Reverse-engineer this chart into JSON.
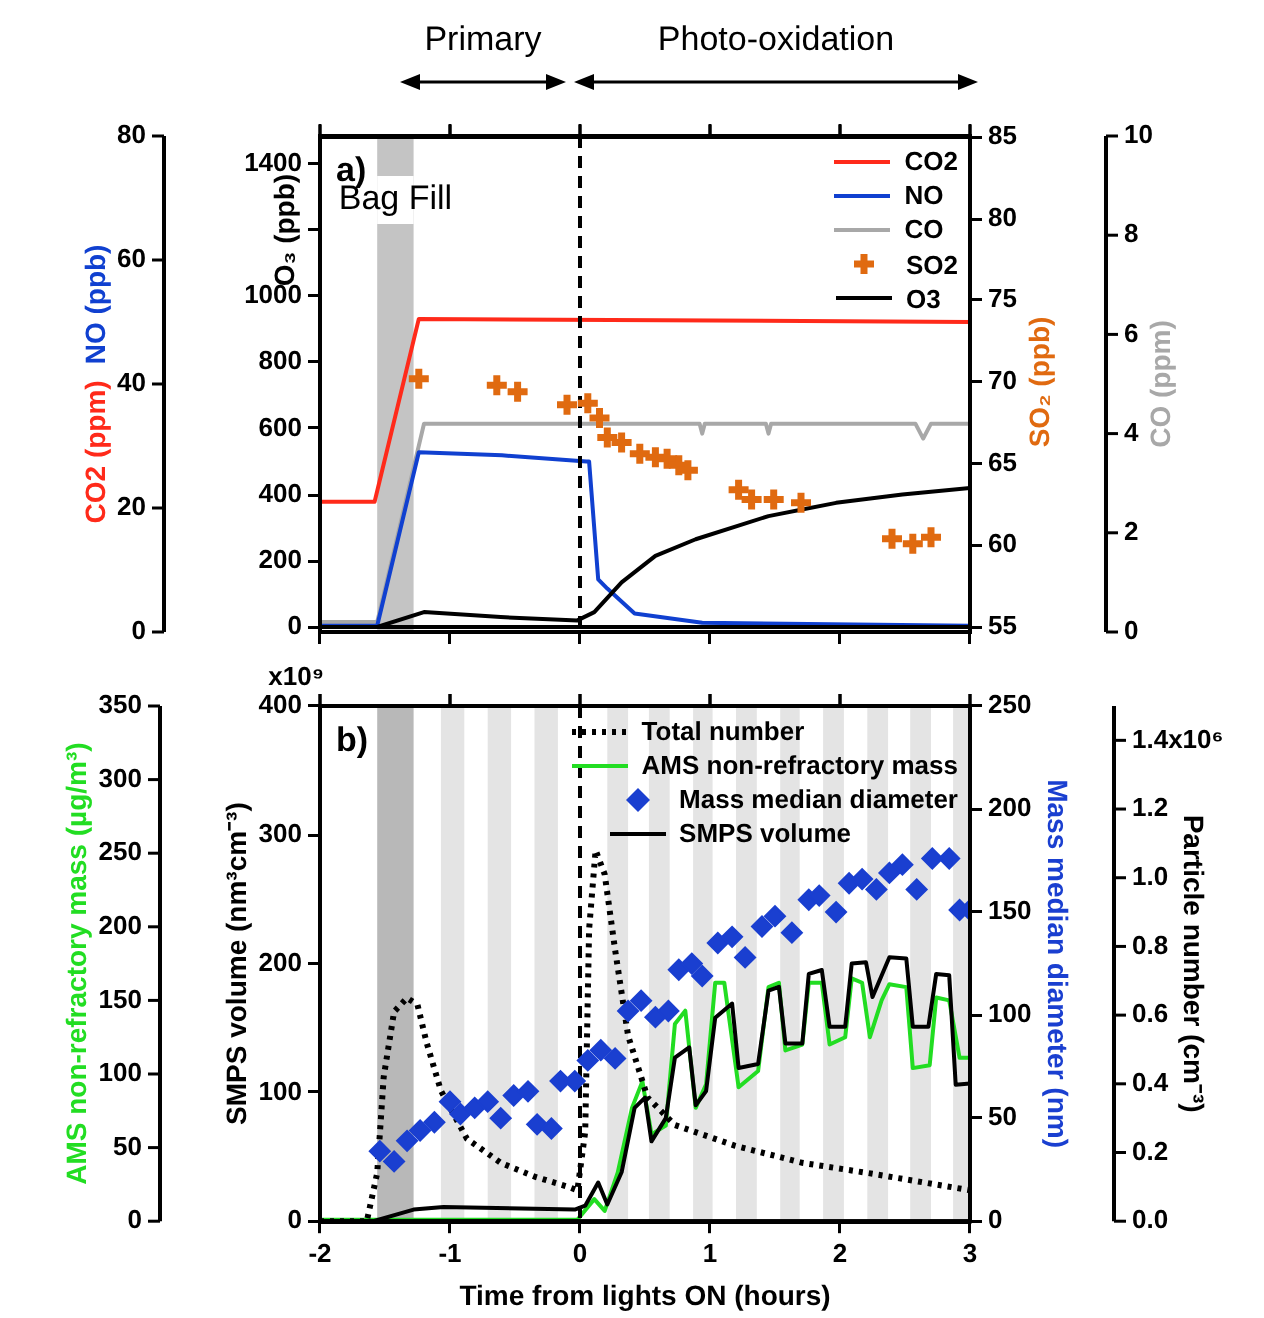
{
  "chart_data": [
    {
      "type": "line",
      "xlim": [
        -2,
        3
      ],
      "xticks": [
        -2,
        -1,
        0,
        1,
        2,
        3
      ],
      "tick_labels": "y",
      "ylabel": [
        "CO2 (ppm)",
        "NO (ppb)"
      ],
      "ylim": [
        0,
        80
      ],
      "yticks": [
        0,
        20,
        40,
        60,
        80
      ],
      "y2label": "CO (ppm)",
      "y2lim": [
        0,
        10
      ],
      "y2ticks": [
        0,
        2,
        4,
        6,
        8,
        10
      ],
      "legend": "top right",
      "annotations": [
        "a)",
        "Primary",
        "Photo-oxidation"
      ],
      "bands": [
        {
          "axis": "x",
          "from": -1.56,
          "to": -1.28,
          "label": "Bag Fill",
          "color": "#c4c4c4"
        }
      ],
      "ref_lines": [
        {
          "axis": "x",
          "value": 0,
          "line_style": "dashed",
          "color": "#000000"
        }
      ],
      "series": [
        {
          "name": "CO2",
          "color": "#ff2a1a",
          "x": [
            -2,
            -1.58,
            -1.24,
            3.0
          ],
          "values": [
            21,
            21,
            50.5,
            50
          ]
        },
        {
          "name": "NO",
          "color": "#1040d0",
          "x": [
            -2,
            -1.56,
            -1.24,
            -0.6,
            0.05,
            0.07,
            0.14,
            0.21,
            0.42,
            0.94,
            3.0
          ],
          "values": [
            1,
            1,
            29,
            28.5,
            27.5,
            27.5,
            8.5,
            7,
            3,
            1.5,
            1
          ]
        },
        {
          "name": "CO",
          "axis": "y2",
          "color": "#a8a8a8",
          "x": [
            -2,
            -1.56,
            -1.2,
            0.92,
            0.94,
            0.96,
            1.43,
            1.45,
            1.47,
            2.58,
            2.64,
            2.7,
            3.0
          ],
          "values": [
            0.2,
            0.2,
            4.2,
            4.2,
            4.0,
            4.2,
            4.2,
            4.0,
            4.2,
            4.2,
            3.9,
            4.2,
            4.2
          ]
        }
      ]
    },
    {
      "type": "line",
      "xlim": [
        -2,
        3
      ],
      "xticks": [
        -2,
        -1,
        0,
        1,
        2,
        3
      ],
      "tick_labels": "y",
      "ylabel": "O₃ (ppb)",
      "ylim": [
        0,
        1480
      ],
      "yticks": [
        0,
        200,
        400,
        600,
        800,
        1000,
        {
          "value": 1200,
          "label": null
        },
        1400
      ],
      "y2label": "SO₂ (ppb)",
      "y2lim": [
        55,
        85
      ],
      "y2ticks": [
        55,
        60,
        65,
        70,
        75,
        80,
        85
      ],
      "legend": "top right",
      "series": [
        {
          "name": "SO2",
          "type": "scatter",
          "marker": "cross",
          "axis": "y2",
          "color": "#e06a10",
          "x": [
            -1.24,
            -0.64,
            -0.48,
            -0.1,
            0.06,
            0.15,
            0.21,
            0.32,
            0.46,
            0.58,
            0.67,
            0.76,
            0.83,
            1.22,
            1.32,
            1.49,
            1.7,
            2.4,
            2.56,
            2.7
          ],
          "values": [
            70.2,
            69.8,
            69.4,
            68.6,
            68.7,
            67.8,
            66.6,
            66.3,
            65.6,
            65.4,
            65.3,
            64.9,
            64.6,
            63.4,
            62.8,
            62.8,
            62.6,
            60.4,
            60.1,
            60.5
          ]
        },
        {
          "name": "O3",
          "color": "#000000",
          "x": [
            -2,
            -1.56,
            -1.2,
            -0.61,
            -0.02,
            0.11,
            0.32,
            0.58,
            0.89,
            1.45,
            1.97,
            2.48,
            3.0
          ],
          "values": [
            0,
            0,
            45,
            30,
            20,
            45,
            135,
            215,
            265,
            335,
            375,
            400,
            420
          ]
        }
      ]
    },
    {
      "type": "line",
      "xlim": [
        -2,
        3
      ],
      "xticks": [
        -2,
        -1,
        0,
        1,
        2,
        3
      ],
      "xlabel": "Time from lights ON (hours)",
      "ylabel": "AMS non-refractory mass (µg/m³)",
      "ylim": [
        0,
        350
      ],
      "yticks": [
        0,
        50,
        100,
        150,
        200,
        250,
        300,
        350
      ],
      "y2label": "Particle number (cm⁻³)",
      "y2lim": [
        0,
        1.5
      ],
      "y2ticks": [
        {
          "value": 0,
          "label": "0.0"
        },
        0.2,
        0.4,
        0.6,
        0.8,
        {
          "value": 1,
          "label": "1.0"
        },
        1.2,
        1.4
      ],
      "legend": "top right",
      "annotations": [
        "b)",
        "x10⁶"
      ],
      "bands": [
        {
          "axis": "x",
          "from": -1.56,
          "to": -1.28,
          "color": "#b8b8b8"
        },
        {
          "axis": "x",
          "from": -1.07,
          "to": -0.89,
          "color": "#e4e4e4"
        },
        {
          "axis": "x",
          "from": -0.71,
          "to": -0.53,
          "color": "#e4e4e4"
        },
        {
          "axis": "x",
          "from": -0.35,
          "to": -0.17,
          "color": "#e4e4e4"
        },
        {
          "axis": "x",
          "from": 0.21,
          "to": 0.37,
          "color": "#e4e4e4"
        },
        {
          "axis": "x",
          "from": 0.53,
          "to": 0.69,
          "color": "#e4e4e4"
        },
        {
          "axis": "x",
          "from": 0.87,
          "to": 1.02,
          "color": "#e4e4e4"
        },
        {
          "axis": "x",
          "from": 1.2,
          "to": 1.36,
          "color": "#e4e4e4"
        },
        {
          "axis": "x",
          "from": 1.54,
          "to": 1.69,
          "color": "#e4e4e4"
        },
        {
          "axis": "x",
          "from": 1.87,
          "to": 2.03,
          "color": "#e4e4e4"
        },
        {
          "axis": "x",
          "from": 2.21,
          "to": 2.37,
          "color": "#e4e4e4"
        },
        {
          "axis": "x",
          "from": 2.54,
          "to": 2.7,
          "color": "#e4e4e4"
        },
        {
          "axis": "x",
          "from": 2.87,
          "to": 3.0,
          "color": "#e4e4e4"
        }
      ],
      "ref_lines": [
        {
          "axis": "x",
          "value": 0,
          "line_style": "dashed",
          "color": "#000000"
        }
      ],
      "series": [
        {
          "name": "Total number",
          "line_style": "dotted",
          "axis": "y2",
          "color": "#000000",
          "x": [
            -2,
            -1.64,
            -1.56,
            -1.51,
            -1.43,
            -1.33,
            -1.25,
            -1.18,
            -1.07,
            -0.87,
            -0.61,
            -0.35,
            -0.09,
            -0.02,
            0.04,
            0.07,
            0.12,
            0.19,
            0.27,
            0.37,
            0.52,
            0.73,
            1.19,
            1.71,
            2.22,
            3.0
          ],
          "values": [
            0,
            0,
            0.14,
            0.42,
            0.61,
            0.65,
            0.63,
            0.52,
            0.38,
            0.24,
            0.17,
            0.13,
            0.1,
            0.09,
            0.26,
            0.85,
            1.08,
            1.01,
            0.79,
            0.54,
            0.36,
            0.28,
            0.22,
            0.17,
            0.14,
            0.09
          ]
        },
        {
          "name": "AMS non-refractory mass",
          "color": "#22dd22",
          "x": [
            -2,
            -0.02,
            0.11,
            0.19,
            0.29,
            0.4,
            0.48,
            0.55,
            0.66,
            0.73,
            0.81,
            0.89,
            0.97,
            1.04,
            1.11,
            1.22,
            1.37,
            1.45,
            1.53,
            1.58,
            1.71,
            1.76,
            1.86,
            1.92,
            2.04,
            2.09,
            2.17,
            2.23,
            2.32,
            2.38,
            2.51,
            2.56,
            2.69,
            2.74,
            2.84,
            2.92,
            3.0
          ],
          "values": [
            1,
            1,
            15,
            7,
            33,
            77,
            95,
            59,
            65,
            134,
            143,
            77,
            93,
            162,
            162,
            91,
            102,
            159,
            162,
            116,
            120,
            162,
            162,
            120,
            125,
            165,
            162,
            125,
            150,
            161,
            159,
            104,
            106,
            152,
            150,
            111,
            111
          ]
        }
      ]
    },
    {
      "type": "line",
      "xlim": [
        -2,
        3
      ],
      "xticks": [
        -2,
        -1,
        0,
        1,
        2,
        3
      ],
      "tick_labels": "y",
      "ylabel": "SMPS volume (nm³cm⁻³)",
      "ylim": [
        0,
        400
      ],
      "yticks": [
        0,
        100,
        200,
        300,
        400
      ],
      "annotations": [
        "x10⁹"
      ],
      "y2label": "Mass median diameter (nm)",
      "y2lim": [
        0,
        250
      ],
      "y2ticks": [
        0,
        50,
        100,
        150,
        200,
        250
      ],
      "legend": "top right",
      "series": [
        {
          "name": "Mass median diameter",
          "type": "scatter",
          "marker": "diamond",
          "axis": "y2",
          "color": "#1a3fd0",
          "x": [
            -1.54,
            -1.43,
            -1.33,
            -1.23,
            -1.12,
            -1.0,
            -0.92,
            -0.81,
            -0.71,
            -0.61,
            -0.51,
            -0.4,
            -0.33,
            -0.22,
            -0.15,
            -0.04,
            0.06,
            0.16,
            0.27,
            0.37,
            0.47,
            0.58,
            0.68,
            0.76,
            0.86,
            0.94,
            1.06,
            1.17,
            1.27,
            1.4,
            1.5,
            1.63,
            1.76,
            1.84,
            1.97,
            2.07,
            2.17,
            2.28,
            2.38,
            2.48,
            2.59,
            2.71,
            2.84,
            2.92,
            3.0
          ],
          "values": [
            34,
            29,
            39,
            44,
            48,
            58,
            52,
            55,
            58,
            50,
            61,
            63,
            47,
            45,
            68,
            68,
            78,
            83,
            79,
            102,
            107,
            99,
            102,
            122,
            125,
            119,
            135,
            138,
            128,
            143,
            148,
            140,
            156,
            158,
            150,
            164,
            166,
            161,
            169,
            173,
            161,
            176,
            176,
            151,
            151
          ]
        },
        {
          "name": "SMPS volume",
          "color": "#000000",
          "x": [
            -2,
            -1.59,
            -1.28,
            -1.05,
            -0.04,
            0.04,
            0.14,
            0.21,
            0.32,
            0.42,
            0.5,
            0.55,
            0.66,
            0.73,
            0.84,
            0.89,
            0.97,
            1.04,
            1.17,
            1.22,
            1.37,
            1.45,
            1.53,
            1.58,
            1.71,
            1.76,
            1.86,
            1.92,
            2.04,
            2.09,
            2.2,
            2.25,
            2.38,
            2.51,
            2.56,
            2.68,
            2.74,
            2.84,
            2.89,
            3.0
          ],
          "values": [
            0,
            0,
            9,
            11,
            9,
            12,
            30,
            13,
            38,
            88,
            96,
            62,
            80,
            127,
            135,
            90,
            101,
            158,
            169,
            119,
            122,
            179,
            182,
            138,
            138,
            192,
            195,
            151,
            151,
            200,
            201,
            174,
            205,
            204,
            151,
            151,
            192,
            191,
            106,
            107
          ]
        }
      ]
    }
  ]
}
